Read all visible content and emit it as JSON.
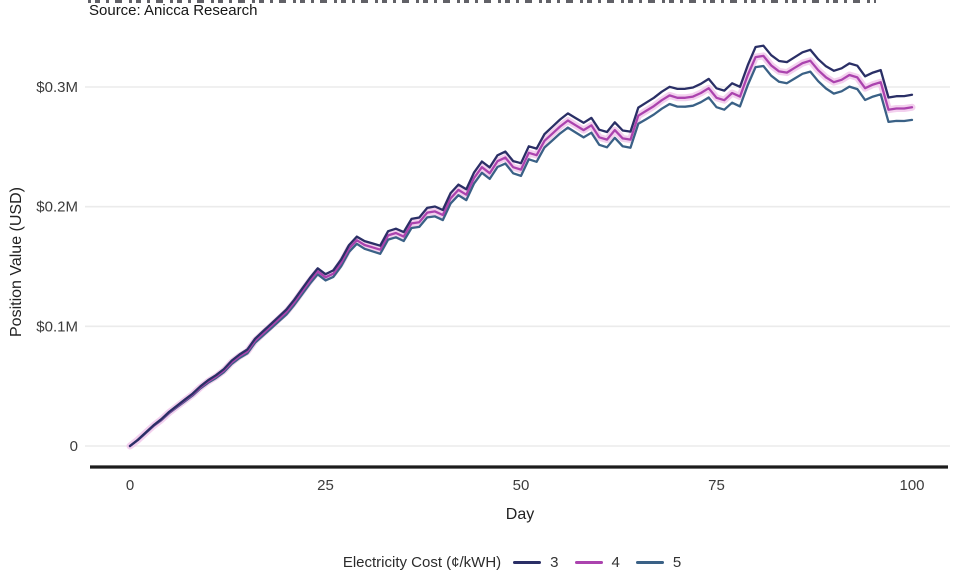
{
  "chart_data": {
    "type": "line",
    "source": "Source: Anicca Research",
    "xlabel": "Day",
    "ylabel": "Position Value (USD)",
    "legend_title": "Electricity Cost (¢/kWH)",
    "legend_position": "bottom-center",
    "grid": true,
    "xlim": [
      0,
      100
    ],
    "ylim": [
      0,
      0.35
    ],
    "x_ticks": [
      0,
      25,
      50,
      75,
      100
    ],
    "y_ticks": [
      {
        "v": 0,
        "label": "0"
      },
      {
        "v": 0.1,
        "label": "$0.1M"
      },
      {
        "v": 0.2,
        "label": "$0.2M"
      },
      {
        "v": 0.3,
        "label": "$0.3M"
      }
    ],
    "y_unit": "USD millions",
    "x": [
      0,
      1,
      2,
      3,
      4,
      5,
      6,
      7,
      8,
      9,
      10,
      11,
      12,
      13,
      14,
      15,
      16,
      17,
      18,
      19,
      20,
      21,
      22,
      23,
      24,
      25,
      26,
      27,
      28,
      29,
      30,
      31,
      32,
      33,
      34,
      35,
      36,
      37,
      38,
      39,
      40,
      41,
      42,
      43,
      44,
      45,
      46,
      47,
      48,
      49,
      50,
      51,
      52,
      53,
      54,
      55,
      56,
      57,
      58,
      59,
      60,
      61,
      62,
      63,
      64,
      65,
      66,
      67,
      68,
      69,
      70,
      71,
      72,
      73,
      74,
      75,
      76,
      77,
      78,
      79,
      80,
      81,
      82,
      83,
      84,
      85,
      86,
      87,
      88,
      89,
      90,
      91,
      92,
      93,
      94,
      95,
      96,
      97,
      98,
      99,
      100
    ],
    "series": [
      {
        "name": "3",
        "color": "#2a2f66",
        "values": [
          0,
          0.0051,
          0.0112,
          0.0173,
          0.0224,
          0.0285,
          0.0336,
          0.0387,
          0.0438,
          0.0499,
          0.0551,
          0.0592,
          0.0643,
          0.0714,
          0.0765,
          0.0806,
          0.0897,
          0.0958,
          0.1019,
          0.108,
          0.1141,
          0.1222,
          0.1313,
          0.1404,
          0.1485,
          0.1436,
          0.1467,
          0.1558,
          0.1679,
          0.175,
          0.1712,
          0.1693,
          0.1674,
          0.1795,
          0.1816,
          0.1787,
          0.1898,
          0.1909,
          0.199,
          0.2001,
          0.1972,
          0.2113,
          0.2184,
          0.2145,
          0.2286,
          0.2377,
          0.2328,
          0.2429,
          0.246,
          0.2381,
          0.2363,
          0.2504,
          0.2485,
          0.2606,
          0.2667,
          0.2728,
          0.2779,
          0.274,
          0.2701,
          0.2742,
          0.2643,
          0.2624,
          0.2705,
          0.2636,
          0.2627,
          0.2828,
          0.2869,
          0.291,
          0.2961,
          0.3002,
          0.2984,
          0.2985,
          0.2996,
          0.3027,
          0.3068,
          0.2989,
          0.297,
          0.3031,
          0.3002,
          0.3183,
          0.3334,
          0.3345,
          0.3266,
          0.3217,
          0.3208,
          0.3249,
          0.329,
          0.3311,
          0.3232,
          0.3173,
          0.3135,
          0.3156,
          0.3197,
          0.3178,
          0.3089,
          0.312,
          0.3141,
          0.2912,
          0.2923,
          0.2924,
          0.2935
        ]
      },
      {
        "name": "4",
        "color": "#ab43ae",
        "halo_color": "#f0c4ea",
        "values": [
          0,
          0.005,
          0.011,
          0.017,
          0.022,
          0.028,
          0.033,
          0.038,
          0.043,
          0.049,
          0.054,
          0.058,
          0.063,
          0.07,
          0.075,
          0.079,
          0.088,
          0.094,
          0.1,
          0.106,
          0.112,
          0.12,
          0.129,
          0.138,
          0.146,
          0.141,
          0.144,
          0.153,
          0.165,
          0.172,
          0.168,
          0.166,
          0.164,
          0.176,
          0.178,
          0.175,
          0.186,
          0.187,
          0.195,
          0.196,
          0.193,
          0.207,
          0.214,
          0.21,
          0.224,
          0.233,
          0.228,
          0.238,
          0.241,
          0.233,
          0.231,
          0.245,
          0.243,
          0.255,
          0.261,
          0.267,
          0.272,
          0.268,
          0.264,
          0.268,
          0.258,
          0.256,
          0.264,
          0.257,
          0.256,
          0.276,
          0.28,
          0.284,
          0.289,
          0.293,
          0.291,
          0.291,
          0.292,
          0.295,
          0.299,
          0.291,
          0.289,
          0.295,
          0.292,
          0.31,
          0.325,
          0.326,
          0.318,
          0.313,
          0.312,
          0.316,
          0.32,
          0.322,
          0.314,
          0.308,
          0.304,
          0.306,
          0.31,
          0.308,
          0.299,
          0.302,
          0.304,
          0.281,
          0.282,
          0.282,
          0.283
        ]
      },
      {
        "name": "5",
        "color": "#3a6186",
        "values": [
          0,
          0.0049,
          0.0108,
          0.0167,
          0.0216,
          0.0275,
          0.0324,
          0.0373,
          0.0422,
          0.0481,
          0.0529,
          0.0568,
          0.0617,
          0.0686,
          0.0735,
          0.0774,
          0.0863,
          0.0922,
          0.0981,
          0.104,
          0.1099,
          0.1178,
          0.1267,
          0.1356,
          0.1435,
          0.1384,
          0.1413,
          0.1502,
          0.1621,
          0.169,
          0.1648,
          0.1627,
          0.1606,
          0.1725,
          0.1744,
          0.1713,
          0.1822,
          0.1831,
          0.191,
          0.1919,
          0.1888,
          0.2027,
          0.2096,
          0.2055,
          0.2194,
          0.2283,
          0.2232,
          0.2331,
          0.236,
          0.2279,
          0.2257,
          0.2396,
          0.2375,
          0.2494,
          0.2553,
          0.2612,
          0.2661,
          0.262,
          0.2579,
          0.2618,
          0.2517,
          0.2496,
          0.2575,
          0.2504,
          0.2493,
          0.2692,
          0.2731,
          0.277,
          0.2819,
          0.2858,
          0.2836,
          0.2835,
          0.2844,
          0.2873,
          0.2912,
          0.2831,
          0.281,
          0.2869,
          0.2838,
          0.3017,
          0.3166,
          0.3175,
          0.3094,
          0.3043,
          0.3032,
          0.3071,
          0.311,
          0.3129,
          0.3048,
          0.2987,
          0.2945,
          0.2964,
          0.3003,
          0.2982,
          0.2891,
          0.292,
          0.2939,
          0.2708,
          0.2717,
          0.2716,
          0.2725
        ]
      }
    ],
    "style": {
      "gridline_color": "#ebebeb",
      "axis_line_color": "#1c1c1c",
      "tick_label_color": "#3c3c3c"
    }
  }
}
